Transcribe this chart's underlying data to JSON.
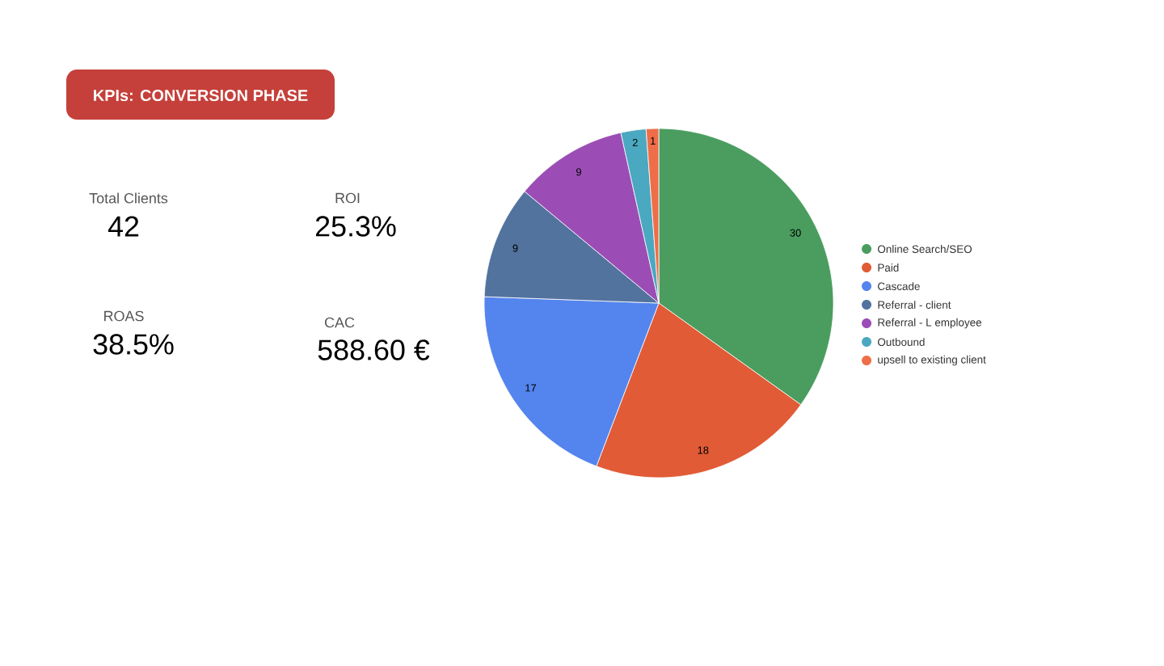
{
  "chart_data": [
    {
      "type": "other",
      "title": "KPIs: CONVERSION PHASE",
      "annotations": [
        "Total Clients",
        "42",
        "ROI",
        "25.3%",
        "ROAS",
        "38.5%",
        "CAC",
        "588.60 €"
      ]
    },
    {
      "type": "pie",
      "categories": [
        "Online Search/SEO",
        "Paid",
        "Cascade",
        "Referral - client",
        "Referral - L employee",
        "Outbound",
        "upsell to existing client"
      ],
      "values": [
        30,
        18,
        17,
        9,
        9,
        2,
        1
      ],
      "colors": [
        "#4a9d5f",
        "#e05b36",
        "#5484ed",
        "#52739e",
        "#9b4db5",
        "#4aa8c0",
        "#ee6e4a"
      ],
      "data_labels": true,
      "legend": "right"
    }
  ]
}
